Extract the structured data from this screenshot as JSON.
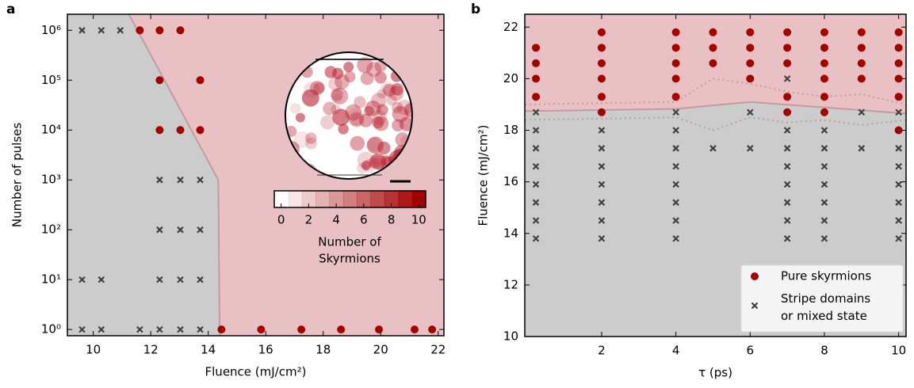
{
  "chart_data": [
    {
      "type": "scatter",
      "panel_label": "a",
      "x_label": "Fluence (mJ/cm²)",
      "y_label": "Number of pulses",
      "log_y": true,
      "xlim": [
        9.1,
        22.2
      ],
      "ylim": [
        0.75,
        2100000
      ],
      "xticks": [
        10,
        12,
        14,
        16,
        18,
        20,
        22
      ],
      "yticks": [
        {
          "value": 1,
          "label": "10⁰"
        },
        {
          "value": 10,
          "label": "10¹"
        },
        {
          "value": 100,
          "label": "10²"
        },
        {
          "value": 1000,
          "label": "10³"
        },
        {
          "value": 10000,
          "label": "10⁴"
        },
        {
          "value": 100000,
          "label": "10⁵"
        },
        {
          "value": 1000000,
          "label": "10⁶"
        }
      ],
      "region_colors": {
        "upper": "#e9c1c4",
        "lower": "#cccccc",
        "line": "#c49a9d"
      },
      "boundary": {
        "x": [
          11.24,
          14.35,
          14.4
        ],
        "y": [
          2100000,
          1000,
          0.75
        ]
      },
      "series": [
        {
          "marker": "circle",
          "color": "#a30000",
          "x": [
            11.62,
            12.31,
            13.03,
            12.31,
            13.72,
            12.31,
            13.03,
            13.72,
            14.46,
            15.84,
            17.24,
            18.62,
            19.94,
            21.18,
            21.79
          ],
          "values": [
            1000000,
            1000000,
            1000000,
            100000,
            100000,
            10000,
            10000,
            10000,
            1,
            1,
            1,
            1,
            1,
            1,
            1
          ]
        },
        {
          "marker": "cross",
          "color": "#404040",
          "x": [
            9.61,
            10.28,
            10.94,
            12.31,
            13.03,
            13.72,
            12.31,
            13.03,
            13.72,
            9.61,
            10.28,
            12.31,
            13.03,
            13.72,
            9.61,
            10.28,
            11.62,
            12.31,
            13.03,
            13.72
          ],
          "values": [
            1000000,
            1000000,
            1000000,
            1000,
            1000,
            1000,
            100,
            100,
            100,
            10,
            10,
            10,
            10,
            10,
            1,
            1,
            1,
            1,
            1,
            1
          ]
        }
      ],
      "colorbar": {
        "label_lines": [
          "Number of",
          "Skyrmions"
        ],
        "range": [
          -0.5,
          10.5
        ],
        "ticks": [
          0,
          2,
          4,
          6,
          8,
          10
        ],
        "color": "#a30000"
      }
    },
    {
      "type": "scatter",
      "panel_label": "b",
      "x_label": "τ (ps)",
      "y_label": "Fluence (mJ/cm²)",
      "log_y": false,
      "xlim": [
        -0.07,
        10.2
      ],
      "ylim": [
        10,
        22.5
      ],
      "xticks": [
        2,
        4,
        6,
        8,
        10
      ],
      "yticks": [
        10,
        12,
        14,
        16,
        18,
        20,
        22
      ],
      "region_colors": {
        "upper": "#e9c1c4",
        "lower": "#cccccc",
        "line": "#c49a9d"
      },
      "boundary": {
        "x": [
          -0.07,
          4,
          6,
          10.2
        ],
        "y": [
          18.74,
          18.83,
          19.1,
          18.65
        ]
      },
      "boundary_upper": {
        "x": [
          -0.07,
          4,
          5,
          6,
          7,
          8,
          9,
          10.2
        ],
        "y": [
          19.0,
          19.1,
          20.0,
          19.8,
          19.5,
          19.3,
          19.4,
          19.0
        ]
      },
      "boundary_lower": {
        "x": [
          -0.07,
          4,
          5,
          6,
          7,
          8,
          9,
          10.2
        ],
        "y": [
          18.4,
          18.5,
          18.0,
          18.5,
          18.3,
          18.4,
          18.2,
          18.4
        ]
      },
      "legend": "lower right",
      "series": [
        {
          "name": "Pure skyrmions",
          "marker": "circle",
          "color": "#a30000",
          "x": [
            0.23,
            0.23,
            0.23,
            0.23,
            2,
            2,
            2,
            2,
            2,
            2,
            4,
            4,
            4,
            4,
            4,
            5,
            5,
            5,
            6,
            6,
            6,
            6,
            7,
            7,
            7,
            7,
            7,
            8,
            8,
            8,
            8,
            8,
            8,
            9,
            9,
            9,
            9,
            10,
            10,
            10,
            10,
            10,
            10
          ],
          "values": [
            21.2,
            20.6,
            20.0,
            19.3,
            21.8,
            21.2,
            20.6,
            20.0,
            19.3,
            18.7,
            21.8,
            21.2,
            20.6,
            20.0,
            19.3,
            21.8,
            21.2,
            20.6,
            21.8,
            21.2,
            20.6,
            20.0,
            21.8,
            21.2,
            20.6,
            19.3,
            18.7,
            21.8,
            21.2,
            20.6,
            20.0,
            19.3,
            18.7,
            21.8,
            21.2,
            20.6,
            20.0,
            21.8,
            21.2,
            20.6,
            20.0,
            19.3,
            18.0
          ]
        },
        {
          "name": "Stripe domains\nor mixed state",
          "marker": "cross",
          "color": "#404040",
          "x": [
            0.23,
            0.23,
            0.23,
            0.23,
            0.23,
            0.23,
            0.23,
            0.23,
            2,
            2,
            2,
            2,
            2,
            2,
            2,
            4,
            4,
            4,
            4,
            4,
            4,
            4,
            4,
            5,
            6,
            6,
            7,
            7,
            7,
            7,
            7,
            7,
            7,
            7,
            8,
            8,
            8,
            8,
            8,
            8,
            8,
            9,
            9,
            10,
            10,
            10,
            10,
            10,
            10,
            10
          ],
          "values": [
            18.7,
            18.0,
            17.3,
            16.6,
            15.9,
            15.2,
            14.5,
            13.8,
            18.0,
            17.3,
            16.6,
            15.9,
            15.2,
            14.5,
            13.8,
            18.7,
            18.0,
            17.3,
            16.6,
            15.9,
            15.2,
            14.5,
            13.8,
            17.3,
            18.7,
            17.3,
            20.0,
            18.0,
            17.3,
            16.6,
            15.9,
            15.2,
            14.5,
            13.8,
            18.0,
            17.3,
            16.6,
            15.9,
            15.2,
            14.5,
            13.8,
            18.7,
            17.3,
            18.7,
            17.3,
            16.6,
            15.9,
            15.2,
            14.5,
            13.8
          ]
        }
      ]
    }
  ]
}
